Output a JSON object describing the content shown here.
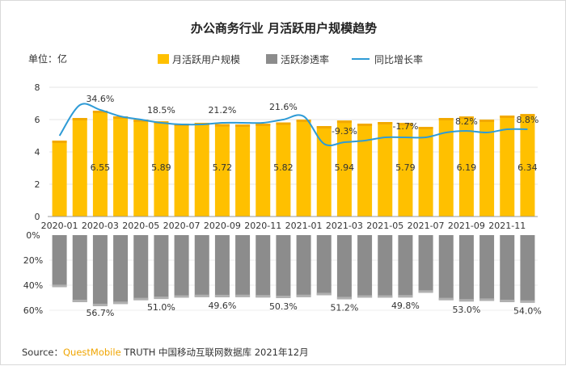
{
  "chart_data": {
    "type": "bar",
    "title": "办公商务行业 月活跃用户规模趋势",
    "unit_label": "单位：亿",
    "legend": {
      "mau": "月活跃用户规模",
      "penetration": "活跃渗透率",
      "growth": "同比增长率"
    },
    "colors": {
      "mau": "#ffc000",
      "mau_dark": "#f2a900",
      "penetration": "#8c8c8c",
      "penetration_light": "#b0b0b0",
      "growth": "#2e9bd6"
    },
    "months": [
      "2020-01",
      "2020-02",
      "2020-03",
      "2020-04",
      "2020-05",
      "2020-06",
      "2020-07",
      "2020-08",
      "2020-09",
      "2020-10",
      "2020-11",
      "2020-12",
      "2021-01",
      "2021-02",
      "2021-03",
      "2021-04",
      "2021-05",
      "2021-06",
      "2021-07",
      "2021-08",
      "2021-09",
      "2021-10",
      "2021-11",
      "2021-12"
    ],
    "x_tick_labels": [
      "2020-01",
      "2020-03",
      "2020-05",
      "2020-07",
      "2020-09",
      "2020-11",
      "2021-01",
      "2021-03",
      "2021-05",
      "2021-07",
      "2021-09",
      "2021-11"
    ],
    "mau": [
      4.7,
      6.1,
      6.55,
      6.2,
      6.0,
      5.89,
      5.75,
      5.8,
      5.72,
      5.7,
      5.75,
      5.82,
      6.0,
      5.6,
      5.94,
      5.75,
      5.85,
      5.79,
      5.55,
      6.1,
      6.19,
      6.0,
      6.25,
      6.34
    ],
    "mau_labels": {
      "2": "6.55",
      "5": "5.89",
      "8": "5.72",
      "11": "5.82",
      "14": "5.94",
      "17": "5.79",
      "20": "6.19",
      "23": "6.34"
    },
    "mau_axis": {
      "ylim": [
        0,
        8
      ],
      "ticks": [
        "0",
        "2",
        "4",
        "6",
        "8"
      ]
    },
    "growth": [
      5.0,
      6.9,
      6.6,
      6.2,
      6.0,
      5.8,
      5.7,
      5.7,
      5.8,
      5.8,
      5.8,
      6.0,
      6.2,
      4.5,
      4.6,
      4.7,
      4.9,
      4.9,
      4.9,
      5.2,
      5.3,
      5.2,
      5.4,
      5.4
    ],
    "growth_labels": {
      "2": "34.6%",
      "5": "18.5%",
      "8": "21.2%",
      "11": "21.6%",
      "14": "-9.3%",
      "17": "-1.7%",
      "20": "8.2%",
      "23": "8.8%"
    },
    "penetration": [
      41.5,
      53.5,
      56.7,
      55.0,
      52.0,
      51.0,
      50.0,
      49.5,
      49.6,
      49.5,
      49.8,
      50.3,
      49.5,
      48.0,
      51.2,
      50.0,
      50.0,
      49.8,
      46.0,
      52.0,
      53.0,
      52.5,
      53.5,
      54.0
    ],
    "penetration_labels": {
      "2": "56.7%",
      "5": "51.0%",
      "8": "49.6%",
      "11": "50.3%",
      "14": "51.2%",
      "17": "49.8%",
      "20": "53.0%",
      "23": "54.0%"
    },
    "penetration_axis": {
      "ylim": [
        0,
        60
      ],
      "ticks": [
        "0%",
        "20%",
        "40%",
        "60%"
      ],
      "inverted": true
    }
  },
  "source": {
    "prefix": "Source：",
    "brand": "QuestMobile",
    "suffix": " TRUTH 中国移动互联网数据库 2021年12月"
  }
}
